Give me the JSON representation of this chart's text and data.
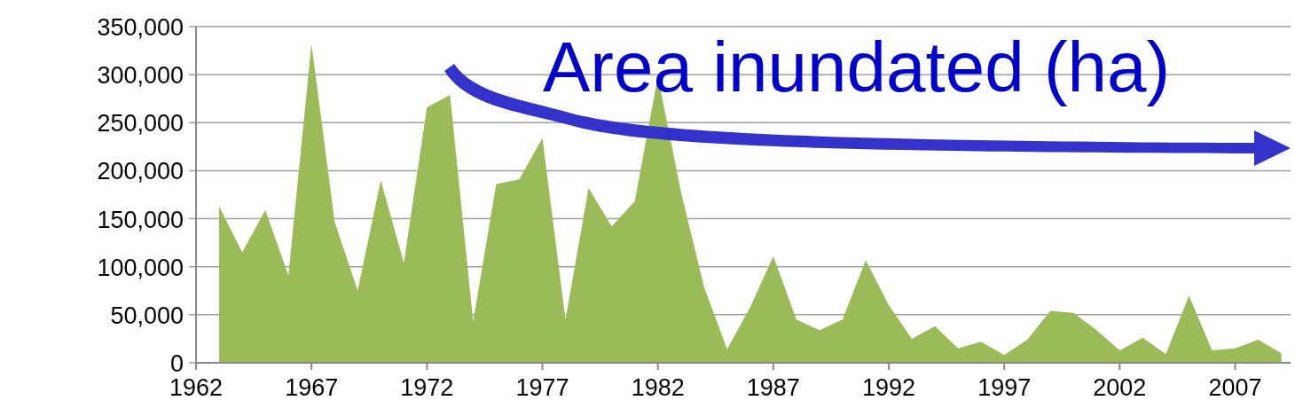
{
  "chart_data": {
    "type": "area",
    "title": "Area inundated (ha)",
    "x": [
      1963,
      1964,
      1965,
      1966,
      1967,
      1968,
      1969,
      1970,
      1971,
      1972,
      1973,
      1974,
      1975,
      1976,
      1977,
      1978,
      1979,
      1980,
      1981,
      1982,
      1983,
      1984,
      1985,
      1986,
      1987,
      1988,
      1989,
      1990,
      1991,
      1992,
      1993,
      1994,
      1995,
      1996,
      1997,
      1998,
      1999,
      2000,
      2001,
      2002,
      2003,
      2004,
      2005,
      2006,
      2007,
      2008,
      2009
    ],
    "series": [
      {
        "color": "#9bbb59",
        "values": [
          163000,
          115000,
          159000,
          91000,
          332000,
          147000,
          75000,
          190000,
          104000,
          266000,
          279000,
          43000,
          186000,
          191000,
          234000,
          45000,
          182000,
          142000,
          168000,
          298000,
          178000,
          79000,
          14000,
          58000,
          111000,
          45000,
          34000,
          45000,
          107000,
          60000,
          25000,
          38000,
          15000,
          22000,
          8000,
          24000,
          54000,
          52000,
          34000,
          13000,
          26000,
          9000,
          70000,
          13000,
          15000,
          24000,
          10000
        ]
      }
    ],
    "xlim": [
      1962,
      2009.4
    ],
    "xticks": [
      1962,
      1967,
      1972,
      1977,
      1982,
      1987,
      1992,
      1997,
      2002,
      2007
    ],
    "ylim": [
      0,
      350000
    ],
    "yticks": [
      {
        "value": 0,
        "label": "0"
      },
      {
        "value": 50000,
        "label": "50,000"
      },
      {
        "value": 100000,
        "label": "100,000"
      },
      {
        "value": 150000,
        "label": "150,000"
      },
      {
        "value": 200000,
        "label": "200,000"
      },
      {
        "value": 250000,
        "label": "250,000"
      },
      {
        "value": 300000,
        "label": "300,000"
      },
      {
        "value": 350000,
        "label": "350,000"
      }
    ],
    "grid": "y"
  }
}
